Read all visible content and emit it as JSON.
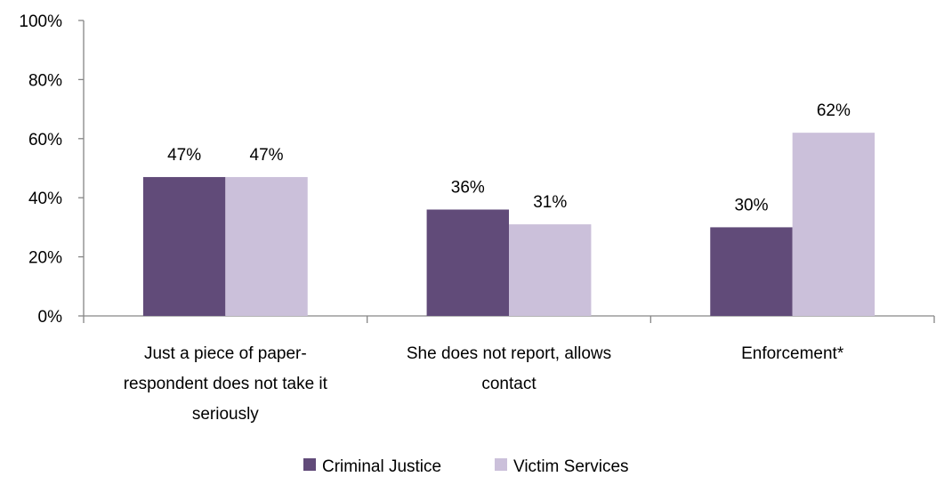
{
  "chart_data": {
    "type": "bar",
    "categories": [
      [
        "Just a piece of paper-",
        "respondent does not take it",
        "seriously"
      ],
      [
        "She does not report, allows",
        "contact"
      ],
      [
        "Enforcement*"
      ]
    ],
    "series": [
      {
        "name": "Criminal Justice",
        "values": [
          47,
          36,
          30
        ],
        "labels": [
          "47%",
          "36%",
          "30%"
        ],
        "color": "#614B79"
      },
      {
        "name": "Victim Services",
        "values": [
          47,
          31,
          62
        ],
        "labels": [
          "47%",
          "31%",
          "62%"
        ],
        "color": "#CBC0DA"
      }
    ],
    "y_ticks": [
      "0%",
      "20%",
      "40%",
      "60%",
      "80%",
      "100%"
    ],
    "ylim": [
      0,
      100
    ],
    "grid": false,
    "legend_position": "bottom"
  }
}
